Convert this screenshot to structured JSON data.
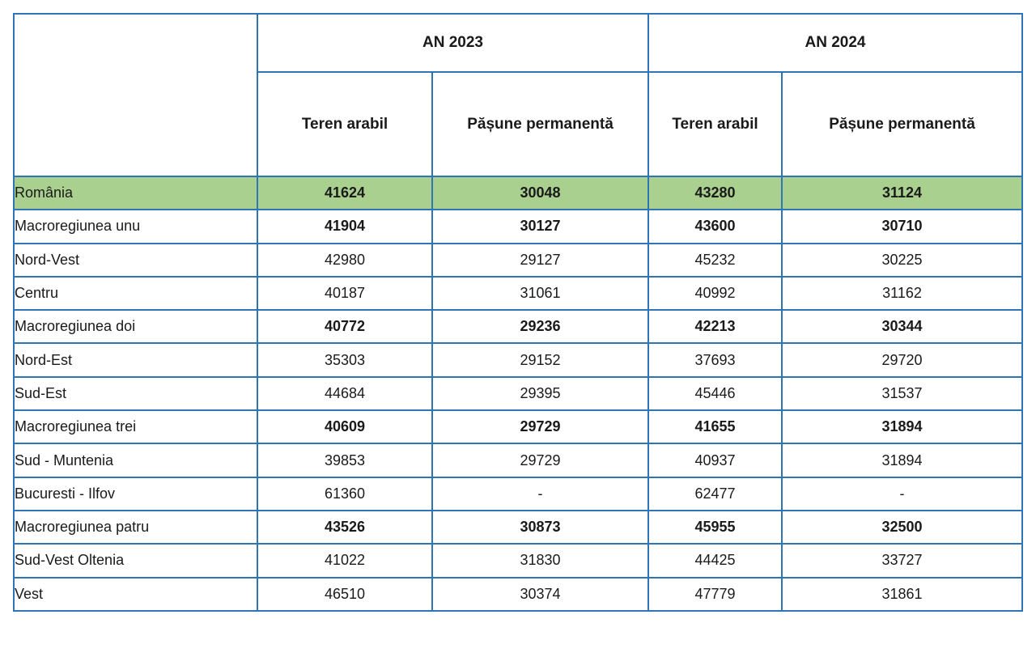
{
  "colors": {
    "border": "#2E75B6",
    "highlight_row": "#A9D08E",
    "text": "#1a1a1a",
    "background": "#FFFFFF"
  },
  "chart_data": {
    "type": "table",
    "title": "",
    "year_headers": [
      "AN 2023",
      "AN 2024"
    ],
    "sub_headers": [
      "Teren arabil",
      "Pășune permanentă",
      "Teren arabil",
      "Pășune permanentă"
    ],
    "corner_label": "",
    "rows": [
      {
        "label": "România",
        "indent": 0,
        "bold_values": true,
        "highlighted": true,
        "values": [
          "41624",
          "30048",
          "43280",
          "31124"
        ]
      },
      {
        "label": "Macroregiunea unu",
        "indent": 1,
        "bold_values": true,
        "highlighted": false,
        "values": [
          "41904",
          "30127",
          "43600",
          "30710"
        ]
      },
      {
        "label": "Nord-Vest",
        "indent": 2,
        "bold_values": false,
        "highlighted": false,
        "values": [
          "42980",
          "29127",
          "45232",
          "30225"
        ]
      },
      {
        "label": "Centru",
        "indent": 2,
        "bold_values": false,
        "highlighted": false,
        "values": [
          "40187",
          "31061",
          "40992",
          "31162"
        ]
      },
      {
        "label": "Macroregiunea doi",
        "indent": 1,
        "bold_values": true,
        "highlighted": false,
        "values": [
          "40772",
          "29236",
          "42213",
          "30344"
        ]
      },
      {
        "label": "Nord-Est",
        "indent": 2,
        "bold_values": false,
        "highlighted": false,
        "values": [
          "35303",
          "29152",
          "37693",
          "29720"
        ]
      },
      {
        "label": "Sud-Est",
        "indent": 2,
        "bold_values": false,
        "highlighted": false,
        "values": [
          "44684",
          "29395",
          "45446",
          "31537"
        ]
      },
      {
        "label": "Macroregiunea trei",
        "indent": 1,
        "bold_values": true,
        "highlighted": false,
        "values": [
          "40609",
          "29729",
          "41655",
          "31894"
        ]
      },
      {
        "label": "Sud - Muntenia",
        "indent": 2,
        "bold_values": false,
        "highlighted": false,
        "values": [
          "39853",
          "29729",
          "40937",
          "31894"
        ]
      },
      {
        "label": "Bucuresti - Ilfov",
        "indent": 2,
        "bold_values": false,
        "highlighted": false,
        "values": [
          "61360",
          "-",
          "62477",
          "-"
        ]
      },
      {
        "label": "Macroregiunea patru",
        "indent": 1,
        "bold_values": true,
        "highlighted": false,
        "values": [
          "43526",
          "30873",
          "45955",
          "32500"
        ]
      },
      {
        "label": "Sud-Vest Oltenia",
        "indent": 2,
        "bold_values": false,
        "highlighted": false,
        "values": [
          "41022",
          "31830",
          "44425",
          "33727"
        ]
      },
      {
        "label": "Vest",
        "indent": 2,
        "bold_values": false,
        "highlighted": false,
        "values": [
          "46510",
          "30374",
          "47779",
          "31861"
        ]
      }
    ]
  }
}
